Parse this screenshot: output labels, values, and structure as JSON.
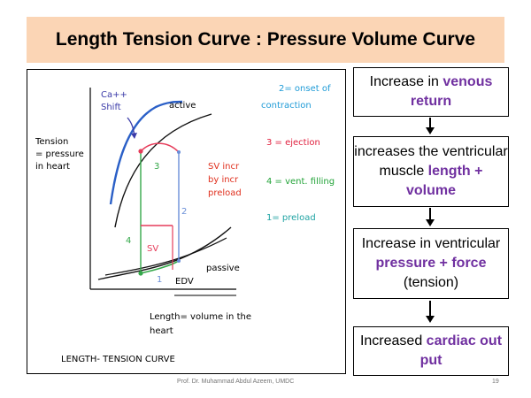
{
  "slide": {
    "title": "Length Tension Curve : Pressure Volume Curve",
    "footer": "Prof. Dr. Muhammad Abdul Azeem, UMDC",
    "page_number": "19"
  },
  "figure": {
    "y_axis_label": [
      "Tension",
      "= pressure",
      "in heart"
    ],
    "x_axis_label": [
      "Length= volume in the",
      "heart"
    ],
    "caption": "LENGTH- TENSION CURVE",
    "ca_shift": [
      "Ca++",
      "Shift"
    ],
    "active_label": "active",
    "passive_label": "passive",
    "edv_label": "EDV",
    "sv_label": "SV",
    "sv_incr_note": [
      "SV incr",
      "by incr",
      "preload"
    ],
    "point_labels": {
      "p1": "1",
      "p2": "2",
      "p3": "3",
      "p4": "4"
    },
    "legend": {
      "item2": [
        "2= onset of",
        "contraction"
      ],
      "item3": "3 = ejection",
      "item4": "4 = vent. filling",
      "item1": "1= preload"
    },
    "colors": {
      "legend2": "#1f9bd7",
      "legend3": "#e01f3d",
      "legend4": "#22a338",
      "legend1": "#1fa3a3",
      "ca_shift": "#3a3aa8",
      "sv_note": "#e0301e",
      "loop_red": "#e63c5a",
      "loop_green": "#35a84a",
      "loop_blue": "#6a8fd8"
    }
  },
  "flowchart": [
    {
      "id": "box1",
      "parts": [
        [
          "Increase in ",
          false
        ],
        [
          "venous return",
          true
        ]
      ]
    },
    {
      "id": "box2",
      "parts": [
        [
          "increases the ventricular muscle ",
          false
        ],
        [
          "length + volume",
          true
        ]
      ]
    },
    {
      "id": "box3",
      "parts": [
        [
          "Increase in ventricular ",
          false
        ],
        [
          "pressure + force",
          true
        ],
        [
          " (tension)",
          false
        ]
      ]
    },
    {
      "id": "box4",
      "parts": [
        [
          "Increased ",
          false
        ],
        [
          "cardiac out put",
          true
        ]
      ]
    }
  ]
}
